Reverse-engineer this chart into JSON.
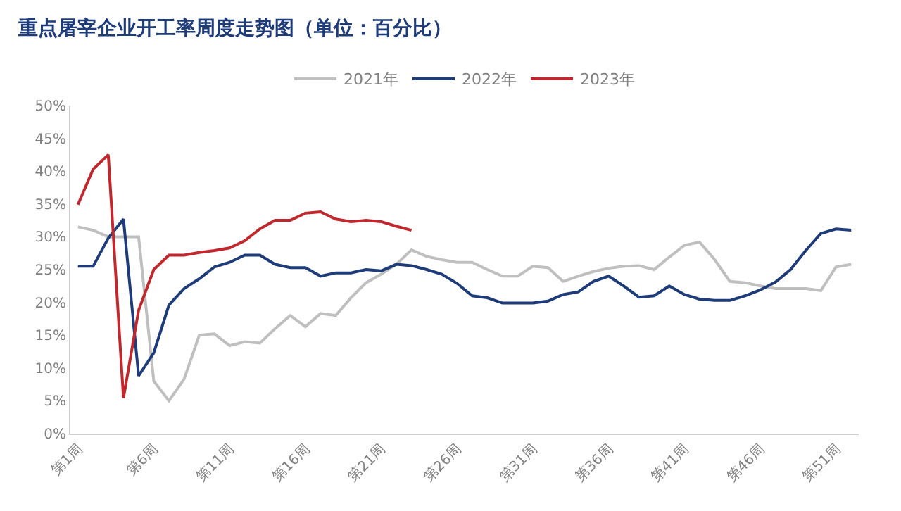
{
  "chart_data": {
    "type": "line",
    "title": "重点屠宰企业开工率周度走势图（单位：百分比）",
    "categories": [
      "第1周",
      null,
      null,
      null,
      null,
      "第6周",
      null,
      null,
      null,
      null,
      "第11周",
      null,
      null,
      null,
      null,
      "第16周",
      null,
      null,
      null,
      null,
      "第21周",
      null,
      null,
      null,
      null,
      "第26周",
      null,
      null,
      null,
      null,
      "第31周",
      null,
      null,
      null,
      null,
      "第36周",
      null,
      null,
      null,
      null,
      "第41周",
      null,
      null,
      null,
      null,
      "第46周",
      null,
      null,
      null,
      null,
      "第51周",
      null
    ],
    "series": [
      {
        "name": "2021年",
        "color": "#bfbfbf",
        "values": [
          31.5,
          31,
          30,
          30,
          30,
          8,
          5,
          8.3,
          15,
          15.2,
          13.4,
          14,
          13.8,
          16,
          18,
          16.3,
          18.3,
          18,
          20.7,
          23,
          24.3,
          25.8,
          28,
          27,
          26.5,
          26.1,
          26.1,
          25,
          24,
          24,
          25.5,
          25.3,
          23.2,
          24,
          24.7,
          25.2,
          25.5,
          25.6,
          25,
          26.9,
          28.7,
          29.2,
          26.5,
          23.2,
          23,
          22.5,
          22.1,
          22.1,
          22.1,
          21.8,
          25.4,
          25.8
        ]
      },
      {
        "name": "2022年",
        "color": "#1f3c7a",
        "values": [
          25.5,
          25.5,
          29.8,
          32.7,
          8.8,
          12.3,
          19.6,
          22.1,
          23.6,
          25.4,
          26.1,
          27.2,
          27.2,
          25.8,
          25.3,
          25.3,
          24,
          24.5,
          24.5,
          25,
          24.8,
          25.8,
          25.6,
          25,
          24.3,
          22.9,
          21,
          20.7,
          19.9,
          19.9,
          19.9,
          20.2,
          21.2,
          21.6,
          23.2,
          24,
          22.5,
          20.8,
          21,
          22.5,
          21.2,
          20.5,
          20.3,
          20.3,
          21,
          21.9,
          23.1,
          25,
          27.9,
          30.5,
          31.2,
          31
        ]
      },
      {
        "name": "2023年",
        "color": "#c0282d",
        "values": [
          34.9,
          40.3,
          42.5,
          5.4,
          18.8,
          25,
          27.2,
          27.2,
          27.6,
          27.9,
          28.3,
          29.4,
          31.2,
          32.5,
          32.5,
          33.6,
          33.8,
          32.7,
          32.3,
          32.5,
          32.3,
          31.6,
          31,
          null,
          null,
          null,
          null,
          null,
          null,
          null,
          null,
          null,
          null,
          null,
          null,
          null,
          null,
          null,
          null,
          null,
          null,
          null,
          null,
          null,
          null,
          null,
          null,
          null,
          null,
          null,
          null,
          null
        ]
      }
    ],
    "ylim": [
      0,
      50
    ],
    "yticks": [
      {
        "value": 0,
        "label": "0%"
      },
      {
        "value": 5,
        "label": "5%"
      },
      {
        "value": 10,
        "label": "10%"
      },
      {
        "value": 15,
        "label": "15%"
      },
      {
        "value": 20,
        "label": "20%"
      },
      {
        "value": 25,
        "label": "25%"
      },
      {
        "value": 30,
        "label": "30%"
      },
      {
        "value": 35,
        "label": "35%"
      },
      {
        "value": 40,
        "label": "40%"
      },
      {
        "value": 45,
        "label": "45%"
      },
      {
        "value": 50,
        "label": "50%"
      }
    ],
    "grid": false,
    "legend": "top",
    "marker": "none",
    "line_style": "solid"
  }
}
